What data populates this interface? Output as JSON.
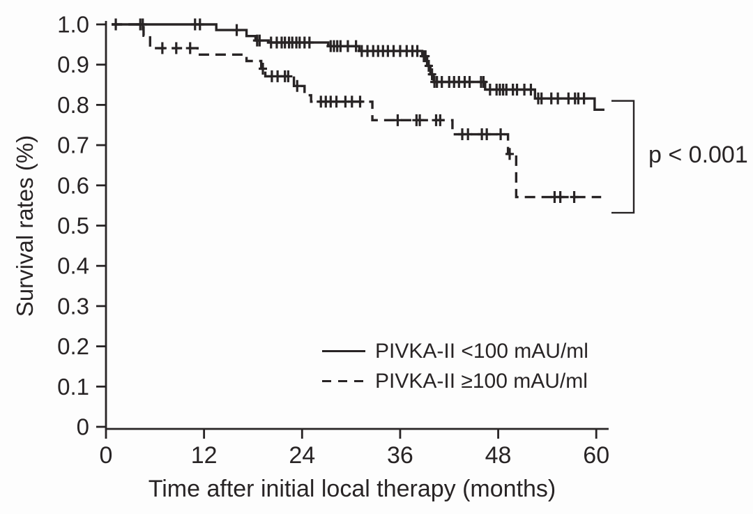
{
  "chart_data": {
    "type": "line",
    "chart_kind": "kaplan_meier_step",
    "title": "",
    "xlabel": "Time after initial local therapy (months)",
    "ylabel": "Survival rates (%)",
    "xlim": [
      0,
      61
    ],
    "ylim": [
      0,
      1.0
    ],
    "x_ticks": [
      0,
      12,
      24,
      36,
      48,
      60
    ],
    "x_tick_labels": [
      "0",
      "12",
      "24",
      "36",
      "48",
      "60"
    ],
    "y_ticks": [
      0,
      0.1,
      0.2,
      0.3,
      0.4,
      0.5,
      0.6,
      0.7,
      0.8,
      0.9,
      1.0
    ],
    "y_tick_labels": [
      "0",
      "0.1",
      "0.2",
      "0.3",
      "0.4",
      "0.5",
      "0.6",
      "0.7",
      "0.8",
      "0.9",
      "1.0"
    ],
    "grid": false,
    "color": "#282425",
    "legend_position": "inside lower-right",
    "p_value": "p < 0.001",
    "bracket": {
      "top_value": 0.81,
      "bottom_value": 0.532
    },
    "series": [
      {
        "name": "PIVKA-II <100 mAU/ml",
        "line_style": "solid",
        "end_month": 61,
        "steps": [
          [
            0.7,
            1.0
          ],
          [
            13.5,
            0.986
          ],
          [
            17.2,
            0.971
          ],
          [
            18.3,
            0.96
          ],
          [
            19.9,
            0.955
          ],
          [
            27.2,
            0.946
          ],
          [
            31.0,
            0.934
          ],
          [
            38.7,
            0.921
          ],
          [
            39.3,
            0.897
          ],
          [
            39.7,
            0.876
          ],
          [
            40.1,
            0.857
          ],
          [
            46.4,
            0.838
          ],
          [
            52.5,
            0.816
          ],
          [
            59.8,
            0.788
          ]
        ],
        "censors": [
          [
            1.2,
            1.0
          ],
          [
            4.2,
            1.0
          ],
          [
            4.5,
            1.0
          ],
          [
            10.9,
            1.0
          ],
          [
            11.5,
            1.0
          ],
          [
            16.0,
            0.986
          ],
          [
            18.5,
            0.96
          ],
          [
            18.8,
            0.96
          ],
          [
            20.2,
            0.955
          ],
          [
            20.9,
            0.955
          ],
          [
            21.5,
            0.955
          ],
          [
            21.9,
            0.955
          ],
          [
            22.4,
            0.955
          ],
          [
            22.8,
            0.955
          ],
          [
            23.3,
            0.955
          ],
          [
            23.7,
            0.955
          ],
          [
            24.3,
            0.955
          ],
          [
            24.9,
            0.955
          ],
          [
            27.5,
            0.946
          ],
          [
            27.9,
            0.946
          ],
          [
            28.3,
            0.946
          ],
          [
            28.7,
            0.946
          ],
          [
            29.6,
            0.946
          ],
          [
            30.6,
            0.946
          ],
          [
            31.3,
            0.934
          ],
          [
            32.0,
            0.934
          ],
          [
            32.7,
            0.934
          ],
          [
            33.3,
            0.934
          ],
          [
            33.9,
            0.934
          ],
          [
            34.5,
            0.934
          ],
          [
            35.2,
            0.934
          ],
          [
            36.0,
            0.934
          ],
          [
            36.8,
            0.934
          ],
          [
            37.5,
            0.934
          ],
          [
            38.1,
            0.934
          ],
          [
            38.9,
            0.921
          ],
          [
            39.1,
            0.921
          ],
          [
            39.5,
            0.897
          ],
          [
            39.9,
            0.876
          ],
          [
            40.2,
            0.857
          ],
          [
            40.5,
            0.857
          ],
          [
            41.1,
            0.857
          ],
          [
            42.0,
            0.857
          ],
          [
            42.6,
            0.857
          ],
          [
            43.2,
            0.857
          ],
          [
            43.9,
            0.857
          ],
          [
            44.5,
            0.857
          ],
          [
            45.9,
            0.857
          ],
          [
            46.2,
            0.857
          ],
          [
            47.0,
            0.838
          ],
          [
            47.8,
            0.838
          ],
          [
            48.2,
            0.838
          ],
          [
            48.6,
            0.838
          ],
          [
            49.0,
            0.838
          ],
          [
            49.8,
            0.838
          ],
          [
            50.3,
            0.838
          ],
          [
            51.2,
            0.838
          ],
          [
            52.0,
            0.838
          ],
          [
            52.9,
            0.816
          ],
          [
            53.3,
            0.816
          ],
          [
            54.5,
            0.816
          ],
          [
            55.3,
            0.816
          ],
          [
            56.6,
            0.816
          ],
          [
            57.4,
            0.816
          ],
          [
            57.8,
            0.816
          ],
          [
            58.5,
            0.816
          ]
        ]
      },
      {
        "name": "PIVKA-II ≥100 mAU/ml",
        "line_style": "dashed",
        "end_month": 60.6,
        "steps": [
          [
            0.7,
            1.0
          ],
          [
            4.6,
            0.972
          ],
          [
            5.4,
            0.941
          ],
          [
            11.2,
            0.925
          ],
          [
            17.2,
            0.909
          ],
          [
            19.0,
            0.89
          ],
          [
            19.5,
            0.871
          ],
          [
            23.0,
            0.847
          ],
          [
            24.3,
            0.824
          ],
          [
            25.1,
            0.808
          ],
          [
            32.6,
            0.762
          ],
          [
            42.4,
            0.727
          ],
          [
            49.2,
            0.678
          ],
          [
            50.2,
            0.571
          ]
        ],
        "censors": [
          [
            6.9,
            0.941
          ],
          [
            8.6,
            0.941
          ],
          [
            10.3,
            0.941
          ],
          [
            19.2,
            0.89
          ],
          [
            20.3,
            0.871
          ],
          [
            21.0,
            0.871
          ],
          [
            21.9,
            0.871
          ],
          [
            22.3,
            0.871
          ],
          [
            23.4,
            0.847
          ],
          [
            26.3,
            0.808
          ],
          [
            26.9,
            0.808
          ],
          [
            27.5,
            0.808
          ],
          [
            28.2,
            0.808
          ],
          [
            29.3,
            0.808
          ],
          [
            30.1,
            0.808
          ],
          [
            31.1,
            0.808
          ],
          [
            35.7,
            0.762
          ],
          [
            38.0,
            0.762
          ],
          [
            38.4,
            0.762
          ],
          [
            40.4,
            0.762
          ],
          [
            40.9,
            0.762
          ],
          [
            43.6,
            0.727
          ],
          [
            44.3,
            0.727
          ],
          [
            46.0,
            0.727
          ],
          [
            46.6,
            0.727
          ],
          [
            48.3,
            0.727
          ],
          [
            49.4,
            0.678
          ],
          [
            54.9,
            0.571
          ],
          [
            55.6,
            0.571
          ],
          [
            57.3,
            0.571
          ]
        ]
      }
    ]
  }
}
